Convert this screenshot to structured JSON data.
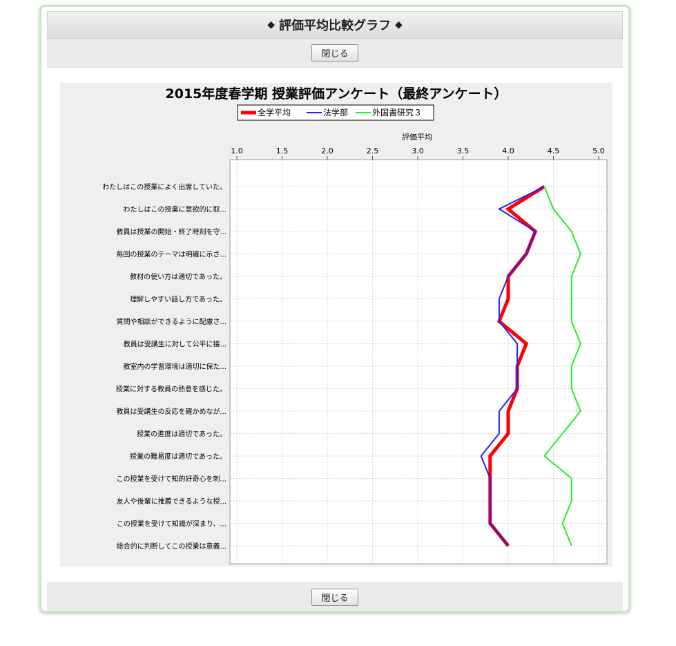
{
  "dialog": {
    "title": "評価平均比較グラフ",
    "close_label": "閉じる"
  },
  "chart_data": {
    "type": "line",
    "orientation": "horizontal",
    "title": "2015年度春学期 授業評価アンケート（最終アンケート）",
    "xlabel": "評価平均",
    "ylabel": "",
    "xlim": [
      1.0,
      5.0
    ],
    "xticks": [
      "1.0",
      "1.5",
      "2.0",
      "2.5",
      "3.0",
      "3.5",
      "4.0",
      "4.5",
      "5.0"
    ],
    "grid": true,
    "legend_position": "top",
    "categories": [
      "わたしはこの授業によく出席していた。",
      "わたしはこの授業に意欲的に取...",
      "教員は授業の開始・終了時刻を守...",
      "毎回の授業のテーマは明確に示さ...",
      "教材の使い方は適切であった。",
      "理解しやすい話し方であった。",
      "質問や相談ができるように配慮さ...",
      "教員は受講生に対して公平に接...",
      "教室内の学習環境は適切に保た...",
      "授業に対する教員の熱意を感じた。",
      "教員は受講生の反応を確かめなが...",
      "授業の進度は適切であった。",
      "授業の難易度は適切であった。",
      "この授業を受けて知的好奇心を刺...",
      "友人や後輩に推薦できるような授...",
      "この授業を受けて知識が深まり、...",
      "総合的に判断してこの授業は意義..."
    ],
    "series": [
      {
        "name": "全学平均",
        "color": "#ff0000",
        "values": [
          4.4,
          4.0,
          4.3,
          4.2,
          4.0,
          4.0,
          3.9,
          4.2,
          4.1,
          4.1,
          4.0,
          4.0,
          3.8,
          3.8,
          3.8,
          3.8,
          4.0
        ]
      },
      {
        "name": "法学部",
        "color": "#2020ff",
        "values": [
          4.4,
          3.9,
          4.3,
          4.2,
          4.0,
          3.9,
          3.9,
          4.1,
          4.1,
          4.1,
          3.9,
          3.9,
          3.7,
          3.8,
          3.8,
          3.8,
          4.0
        ]
      },
      {
        "name": "外国書研究３",
        "color": "#22ee22",
        "values": [
          4.4,
          4.5,
          4.7,
          4.8,
          4.7,
          4.7,
          4.7,
          4.8,
          4.7,
          4.7,
          4.8,
          4.6,
          4.4,
          4.7,
          4.7,
          4.6,
          4.7
        ]
      }
    ]
  }
}
